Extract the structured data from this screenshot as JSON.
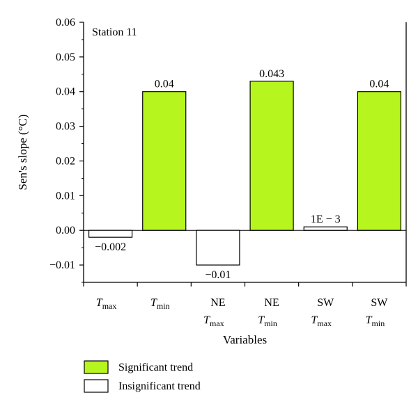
{
  "chart_data": {
    "type": "bar",
    "panel_label": "Station 11",
    "xlabel": "Variables",
    "ylabel": "Sen's slope (°C)",
    "ylim": [
      -0.015,
      0.06
    ],
    "yticks": [
      -0.01,
      0.0,
      0.01,
      0.02,
      0.03,
      0.04,
      0.05,
      0.06
    ],
    "ytick_labels": [
      "−0.01",
      "0.00",
      "0.01",
      "0.02",
      "0.03",
      "0.04",
      "0.05",
      "0.06"
    ],
    "grid": false,
    "legend_position": "bottom-left",
    "categories": [
      {
        "prefix": "",
        "base": "T",
        "sub": "max"
      },
      {
        "prefix": "",
        "base": "T",
        "sub": "min"
      },
      {
        "prefix": "NE",
        "base": "T",
        "sub": "max"
      },
      {
        "prefix": "NE",
        "base": "T",
        "sub": "min"
      },
      {
        "prefix": "SW",
        "base": "T",
        "sub": "max"
      },
      {
        "prefix": "SW",
        "base": "T",
        "sub": "min"
      }
    ],
    "values": [
      -0.002,
      0.04,
      -0.01,
      0.043,
      0.001,
      0.04
    ],
    "data_labels": [
      "−0.002",
      "0.04",
      "−0.01",
      "0.043",
      "1E − 3",
      "0.04"
    ],
    "significant": [
      false,
      true,
      false,
      true,
      false,
      true
    ],
    "legend": [
      {
        "label": "Significant trend",
        "color": "#b7f51e"
      },
      {
        "label": "Insignificant trend",
        "color": "#ffffff"
      }
    ]
  }
}
